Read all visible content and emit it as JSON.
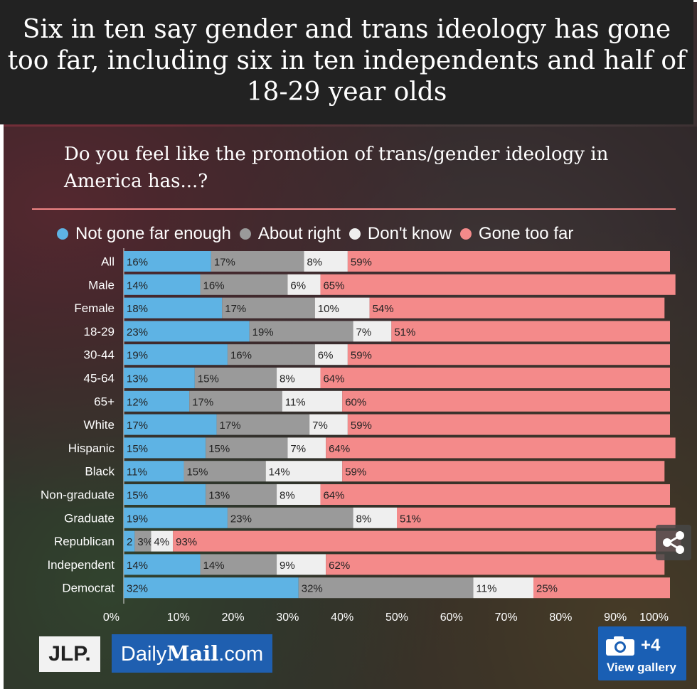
{
  "title": "Six in ten say gender and trans ideology has gone too far, including six in ten independents and half of 18-29 year olds",
  "question": "Do you feel like the promotion of trans/gender ideology in America has...?",
  "legend": [
    {
      "label": "Not gone far enough",
      "color": "#5eb3e4"
    },
    {
      "label": "About right",
      "color": "#9a9a9a"
    },
    {
      "label": "Don't know",
      "color": "#efefef"
    },
    {
      "label": "Gone too far",
      "color": "#f48a8a"
    }
  ],
  "logos": {
    "jlp": "JLP.",
    "dailymail_prefix": "Daily",
    "dailymail_bold": "Mail",
    "dailymail_suffix": ".com"
  },
  "gallery": {
    "count": "+4",
    "label": "View gallery",
    "icon": "camera-icon"
  },
  "share": {
    "icon": "share-icon"
  },
  "chart_data": {
    "type": "bar",
    "orientation": "horizontal-stacked",
    "categories": [
      "All",
      "Male",
      "Female",
      "18-29",
      "30-44",
      "45-64",
      "65+",
      "White",
      "Hispanic",
      "Black",
      "Non-graduate",
      "Graduate",
      "Republican",
      "Independent",
      "Democrat"
    ],
    "series": [
      {
        "name": "Not gone far enough",
        "values": [
          16,
          14,
          18,
          23,
          19,
          13,
          12,
          17,
          15,
          11,
          15,
          19,
          2,
          14,
          32
        ]
      },
      {
        "name": "About right",
        "values": [
          17,
          16,
          17,
          19,
          16,
          15,
          17,
          17,
          15,
          15,
          13,
          23,
          3,
          14,
          32
        ]
      },
      {
        "name": "Don't know",
        "values": [
          8,
          6,
          10,
          7,
          6,
          8,
          11,
          7,
          7,
          14,
          8,
          8,
          4,
          9,
          11
        ]
      },
      {
        "name": "Gone too far",
        "values": [
          59,
          65,
          54,
          51,
          59,
          64,
          60,
          59,
          64,
          59,
          64,
          51,
          93,
          62,
          25
        ]
      }
    ],
    "labels": [
      [
        "16%",
        "17%",
        "8%",
        "59%"
      ],
      [
        "14%",
        "16%",
        "6%",
        "65%"
      ],
      [
        "18%",
        "17%",
        "10%",
        "54%"
      ],
      [
        "23%",
        "19%",
        "7%",
        "51%"
      ],
      [
        "19%",
        "16%",
        "6%",
        "59%"
      ],
      [
        "13%",
        "15%",
        "8%",
        "64%"
      ],
      [
        "12%",
        "17%",
        "11%",
        "60%"
      ],
      [
        "17%",
        "17%",
        "7%",
        "59%"
      ],
      [
        "15%",
        "15%",
        "7%",
        "64%"
      ],
      [
        "11%",
        "15%",
        "14%",
        "59%"
      ],
      [
        "15%",
        "13%",
        "8%",
        "64%"
      ],
      [
        "19%",
        "23%",
        "8%",
        "51%"
      ],
      [
        "2",
        "3%",
        "4%",
        "93%"
      ],
      [
        "14%",
        "14%",
        "9%",
        "62%"
      ],
      [
        "32%",
        "32%",
        "11%",
        "25%"
      ]
    ],
    "x_ticks": [
      "0%",
      "10%",
      "20%",
      "30%",
      "40%",
      "50%",
      "60%",
      "70%",
      "80%",
      "90%",
      "100%"
    ],
    "xlim": [
      0,
      100
    ]
  }
}
